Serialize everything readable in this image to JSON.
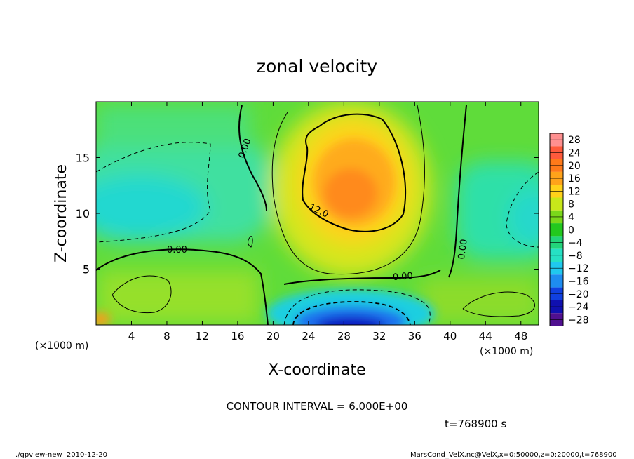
{
  "chart_data": {
    "type": "heatmap",
    "title": "zonal velocity",
    "xlabel": "X-coordinate",
    "ylabel": "Z-coordinate",
    "x_unit_left": "(×1000 m)",
    "x_unit_right": "(×1000 m)",
    "xlim": [
      0,
      50
    ],
    "ylim": [
      0,
      20
    ],
    "x_ticks": [
      4,
      8,
      12,
      16,
      20,
      24,
      28,
      32,
      36,
      40,
      44,
      48
    ],
    "y_ticks": [
      5,
      10,
      15
    ],
    "colorbar": {
      "levels": [
        28,
        24,
        20,
        16,
        12,
        8,
        4,
        0,
        -4,
        -8,
        -12,
        -16,
        -20,
        -24,
        -28
      ],
      "labels": [
        "28",
        "24",
        "20",
        "16",
        "12",
        "8",
        "4",
        "0",
        "−4",
        "−8",
        "−12",
        "−16",
        "−20",
        "−24",
        "−28"
      ],
      "colors": [
        "#ff9090",
        "#ff5a3c",
        "#ff7a1a",
        "#ffa31a",
        "#ffd21a",
        "#c8e81a",
        "#7ad81a",
        "#22c81e",
        "#22d47a",
        "#26e0c4",
        "#20c8ee",
        "#1e8cf0",
        "#1040e0",
        "#1010b0",
        "#501090"
      ]
    },
    "contour_labels": [
      "0.00",
      "0.00",
      "0.00",
      "0.00",
      "12.0"
    ],
    "contour_interval_text": "CONTOUR INTERVAL = 6.000E+00",
    "time_text": "t=768900 s",
    "footer_left": "./gpview-new  2010-12-20",
    "footer_right": "MarsCond_VelX.nc@VelX,x=0:50000,z=0:20000,t=768900"
  }
}
